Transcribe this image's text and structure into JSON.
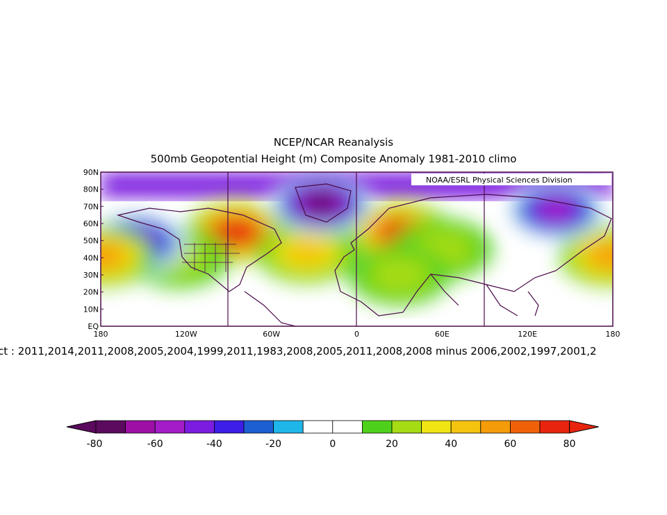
{
  "title_line1": "NCEP/NCAR Reanalysis",
  "title_line2": "500mb Geopotential Height (m) Composite Anomaly 1981-2010 climo",
  "credit": "NOAA/ESRL Physical Sciences Division",
  "subtitle": "ct : 2011,2014,2011,2008,2005,2004,1999,2011,1983,2008,2005,2011,2008,2008 minus 2006,2002,1997,2001,2",
  "colors": [
    "#5b0a5e",
    "#9c10a6",
    "#a31cc8",
    "#7b1ce0",
    "#3c1ee6",
    "#1d5fd2",
    "#1fb6ea",
    "#ffffff",
    "#ffffff",
    "#4fd11c",
    "#a6dc14",
    "#f0e514",
    "#f5c40f",
    "#f59c0a",
    "#f0620a",
    "#e8240e"
  ],
  "map": {
    "lat_labels": [
      "EQ",
      "10N",
      "20N",
      "30N",
      "40N",
      "50N",
      "60N",
      "70N",
      "80N",
      "90N"
    ],
    "lon_labels": [
      "180",
      "120W",
      "60W",
      "0",
      "60E",
      "120E",
      "180"
    ],
    "anomalies": [
      {
        "lon": -85,
        "lat": 55,
        "value": 80
      },
      {
        "lon": -35,
        "lat": 43,
        "value": 45
      },
      {
        "lon": -125,
        "lat": 40,
        "value": 20
      },
      {
        "lon": -155,
        "lat": 49,
        "value": -65
      },
      {
        "lon": -178,
        "lat": 41,
        "value": 50
      },
      {
        "lon": 178,
        "lat": 41,
        "value": 55
      },
      {
        "lon": 30,
        "lat": 55,
        "value": 70
      },
      {
        "lon": 60,
        "lat": 45,
        "value": 25
      },
      {
        "lon": -25,
        "lat": 72,
        "value": -80
      },
      {
        "lon": 140,
        "lat": 68,
        "value": -60
      },
      {
        "lon": 30,
        "lat": 30,
        "value": 20
      }
    ]
  },
  "colorbar": {
    "labels": [
      "-80",
      "-60",
      "-40",
      "-20",
      "0",
      "20",
      "40",
      "60",
      "80"
    ]
  }
}
